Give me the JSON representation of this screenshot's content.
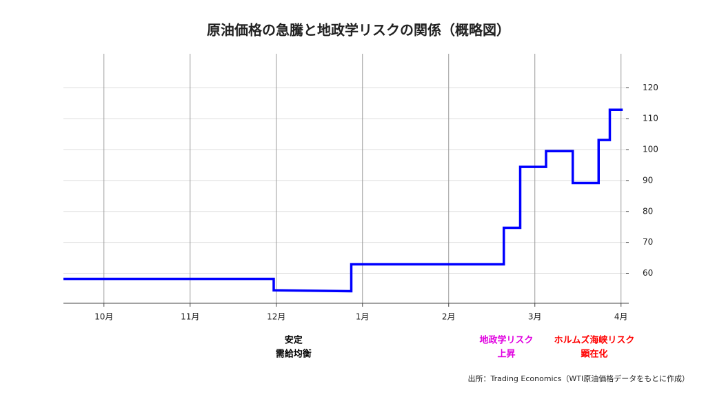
{
  "chart_data": {
    "type": "line",
    "title": "原油価格の急騰と地政学リスクの関係（概略図）",
    "x": [
      -0.47,
      1.97,
      1.97,
      2.87,
      2.87,
      4.64,
      4.64,
      4.83,
      4.83,
      5.13,
      5.13,
      5.44,
      5.44,
      5.74,
      5.74,
      5.87,
      5.87,
      6.02
    ],
    "series": [
      {
        "color": "#0000ff",
        "values": [
          58.2,
          58.2,
          54.5,
          54.2,
          62.9,
          62.9,
          74.7,
          74.7,
          94.4,
          94.4,
          99.5,
          99.5,
          89.2,
          89.2,
          103.1,
          103.1,
          112.9,
          112.9
        ]
      }
    ],
    "xlim": [
      -0.47,
      6.09
    ],
    "xticks": [
      {
        "value": 0,
        "label": "10月"
      },
      {
        "value": 1,
        "label": "11月"
      },
      {
        "value": 2,
        "label": "12月"
      },
      {
        "value": 3,
        "label": "1月"
      },
      {
        "value": 4,
        "label": "2月"
      },
      {
        "value": 5,
        "label": "3月"
      },
      {
        "value": 6,
        "label": "4月"
      }
    ],
    "ylim": [
      50.3,
      131
    ],
    "yticks": [
      60,
      70,
      80,
      90,
      100,
      110,
      120
    ],
    "grid": true,
    "annotations": [
      {
        "lines": [
          "安定",
          "需給均衡"
        ],
        "color": "#000000",
        "x": 2.2
      },
      {
        "lines": [
          "地政学リスク",
          "上昇"
        ],
        "color": "#e000e0",
        "x": 4.67
      },
      {
        "lines": [
          "ホルムズ海峡リスク",
          "顕在化"
        ],
        "color": "#ff0000",
        "x": 5.69
      }
    ],
    "source": "出所：Trading Economics（WTI原油価格データをもとに作成）"
  }
}
